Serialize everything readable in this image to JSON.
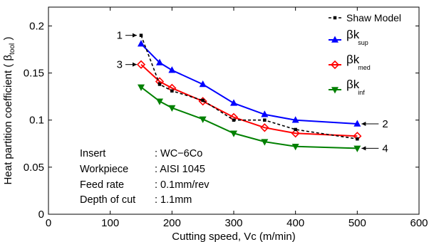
{
  "chart_data": {
    "type": "line",
    "xlabel": "Cutting speed, Vc (m/min)",
    "ylabel": "Heat partition coefficient ( β",
    "ylabel_sub": "tool",
    "ylabel_end": " )",
    "xlim": [
      0,
      600
    ],
    "ylim": [
      0,
      0.22
    ],
    "x_ticks": [
      0,
      100,
      200,
      300,
      400,
      500,
      600
    ],
    "x_tick_labels": [
      "0",
      "100",
      "200",
      "300",
      "400",
      "500",
      "600"
    ],
    "y_ticks": [
      0,
      0.05,
      0.1,
      0.15,
      0.2
    ],
    "y_tick_labels": [
      "0",
      "0.05",
      "0.1",
      "0.15",
      "0.2"
    ],
    "grid": false,
    "legend_position": "top-right",
    "series": [
      {
        "name": "Shaw Model",
        "color": "#000000",
        "marker": "square",
        "dashed": true,
        "x": [
          150,
          180,
          200,
          250,
          300,
          350,
          400,
          500
        ],
        "y": [
          0.19,
          0.138,
          0.131,
          0.121,
          0.1,
          0.1,
          0.09,
          0.08
        ]
      },
      {
        "name": "βk",
        "name_sub": "sup",
        "color": "#0000ff",
        "marker": "triangle-up",
        "dashed": false,
        "x": [
          150,
          180,
          200,
          250,
          300,
          350,
          400,
          500
        ],
        "y": [
          0.181,
          0.161,
          0.153,
          0.138,
          0.118,
          0.106,
          0.1,
          0.096
        ]
      },
      {
        "name": "βk",
        "name_sub": "med",
        "color": "#ff0000",
        "marker": "diamond",
        "dashed": false,
        "x": [
          150,
          180,
          200,
          250,
          300,
          350,
          400,
          500
        ],
        "y": [
          0.159,
          0.141,
          0.134,
          0.12,
          0.103,
          0.092,
          0.086,
          0.083
        ]
      },
      {
        "name": "βk",
        "name_sub": "inf",
        "color": "#008000",
        "marker": "triangle-down",
        "dashed": false,
        "x": [
          150,
          180,
          200,
          250,
          300,
          350,
          400,
          500
        ],
        "y": [
          0.135,
          0.12,
          0.113,
          0.101,
          0.086,
          0.077,
          0.072,
          0.07
        ]
      }
    ],
    "annotations": [
      {
        "label": "1",
        "x": 150,
        "y": 0.19,
        "side": "left"
      },
      {
        "label": "3",
        "x": 150,
        "y": 0.159,
        "side": "left"
      },
      {
        "label": "2",
        "x": 500,
        "y": 0.096,
        "side": "right"
      },
      {
        "label": "4",
        "x": 500,
        "y": 0.07,
        "side": "right"
      }
    ],
    "info_box": [
      {
        "key": "Insert",
        "value": ": WC−6Co"
      },
      {
        "key": "Workpiece",
        "value": ": AISI 1045"
      },
      {
        "key": "Feed rate",
        "value": ": 0.1mm/rev"
      },
      {
        "key": "Depth of cut",
        "value": ": 1.1mm"
      }
    ]
  }
}
